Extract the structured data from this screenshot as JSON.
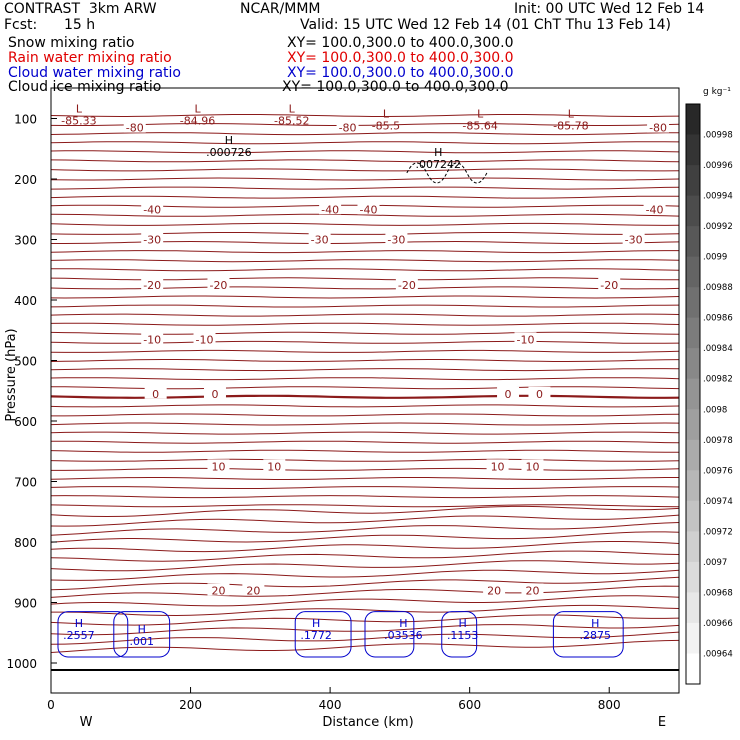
{
  "header": {
    "model": "CONTRAST  3km ARW",
    "org": "NCAR/MMM",
    "init": "Init: 00 UTC Wed 12 Feb 14",
    "fcst_label": "Fcst:",
    "fcst_value": "15 h",
    "valid": "Valid: 15 UTC Wed 12 Feb 14 (01 ChT Thu 13 Feb 14)",
    "fields": [
      {
        "name": "Snow mixing ratio",
        "xy": "XY= 100.0,300.0 to 400.0,300.0",
        "color": "#000000"
      },
      {
        "name": "Rain water mixing ratio",
        "xy": "XY= 100.0,300.0 to 400.0,300.0",
        "color": "#e00000"
      },
      {
        "name": "Cloud water mixing ratio",
        "xy": "XY= 100.0,300.0 to 400.0,300.0",
        "color": "#0000cc"
      },
      {
        "name": "Cloud ice mixing ratio",
        "xy": "XY= 100.0,300.0 to 400.0,300.0",
        "color": "#000000"
      }
    ]
  },
  "chart_data": {
    "type": "contour",
    "xlabel": "Distance (km)",
    "ylabel": "Pressure (hPa)",
    "xlim": [
      0,
      900
    ],
    "ylim": [
      1050,
      50
    ],
    "x_ticks": [
      0,
      200,
      400,
      600,
      800
    ],
    "y_ticks": [
      100,
      200,
      300,
      400,
      500,
      600,
      700,
      800,
      900,
      1000
    ],
    "direction_left": "W",
    "direction_right": "E",
    "temperature_color": "#8b1a1a",
    "temperature_contours": [
      {
        "label": "-80",
        "pressure": 115,
        "label_x": [
          120,
          425,
          870
        ]
      },
      {
        "label": "-40",
        "pressure": 250,
        "label_x": [
          145,
          400,
          455,
          865
        ]
      },
      {
        "label": "-30",
        "pressure": 300,
        "label_x": [
          145,
          385,
          495,
          835
        ]
      },
      {
        "label": "-20",
        "pressure": 375,
        "label_x": [
          145,
          240,
          510,
          800
        ]
      },
      {
        "label": "-10",
        "pressure": 465,
        "label_x": [
          145,
          220,
          680
        ]
      },
      {
        "label": "0",
        "pressure": 555,
        "label_x": [
          150,
          235,
          655,
          700
        ]
      },
      {
        "label": "10",
        "pressure": 675,
        "label_x": [
          240,
          320,
          640,
          690
        ]
      },
      {
        "label": "20",
        "pressure": 880,
        "label_x": [
          240,
          290,
          635,
          690
        ]
      }
    ],
    "extrema": [
      {
        "kind": "L",
        "value": "-85.33",
        "x": 40,
        "p": 100
      },
      {
        "kind": "L",
        "value": "-84.96",
        "x": 210,
        "p": 100
      },
      {
        "kind": "L",
        "value": "-85.52",
        "x": 345,
        "p": 100
      },
      {
        "kind": "L",
        "value": "-85.5",
        "x": 480,
        "p": 108
      },
      {
        "kind": "L",
        "value": "-85.64",
        "x": 615,
        "p": 108
      },
      {
        "kind": "L",
        "value": "-85.78",
        "x": 745,
        "p": 108
      },
      {
        "kind": "H",
        "value": ".000726",
        "x": 255,
        "p": 152
      },
      {
        "kind": "H",
        "value": ".007242",
        "x": 555,
        "p": 172
      },
      {
        "kind": "H",
        "value": ".2557",
        "x": 40,
        "p": 950
      },
      {
        "kind": "H",
        "value": ".001",
        "x": 130,
        "p": 960
      },
      {
        "kind": "H",
        "value": ".1772",
        "x": 380,
        "p": 950
      },
      {
        "kind": "H",
        "value": ".03536",
        "x": 505,
        "p": 950
      },
      {
        "kind": "H",
        "value": ".1153",
        "x": 590,
        "p": 950
      },
      {
        "kind": "H",
        "value": ".2875",
        "x": 780,
        "p": 950
      }
    ],
    "colorbar": {
      "unit": "g kg⁻¹",
      "ticks": [
        ".00998",
        ".00996",
        ".00994",
        ".00992",
        ".0099",
        ".00988",
        ".00986",
        ".00984",
        ".00982",
        ".0098",
        ".00978",
        ".00976",
        ".00974",
        ".00972",
        ".0097",
        ".00968",
        ".00966",
        ".00964"
      ]
    }
  }
}
